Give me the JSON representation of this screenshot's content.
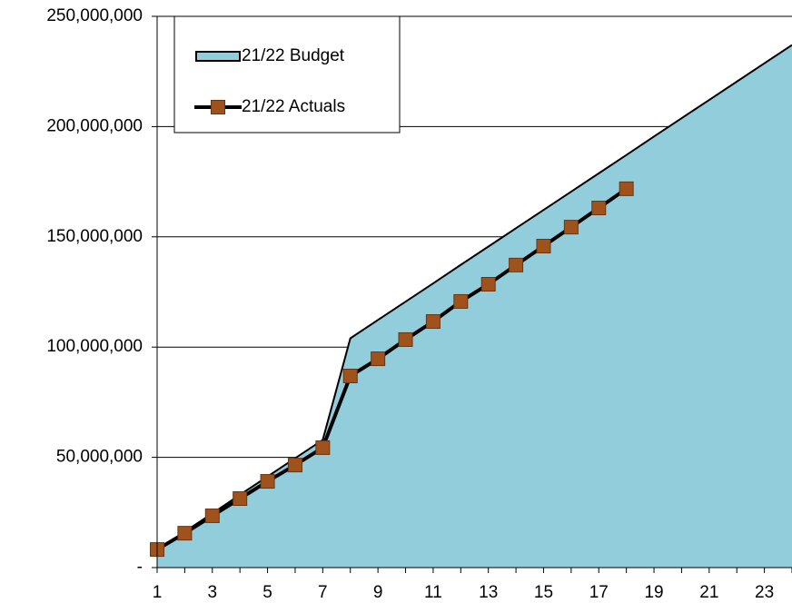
{
  "chart_data": {
    "type": "line",
    "categories": [
      "1",
      null,
      "3",
      null,
      "5",
      null,
      "7",
      null,
      "9",
      null,
      "11",
      null,
      "13",
      null,
      "15",
      null,
      "17",
      null,
      "19",
      null,
      "21",
      null,
      "23",
      null
    ],
    "series": [
      {
        "name": "21/22 Budget",
        "color": "#92cddc",
        "fill": true,
        "values": [
          8000000,
          16300000,
          24600000,
          33000000,
          41300000,
          49600000,
          57900000,
          104000000,
          112300000,
          120600000,
          128900000,
          137300000,
          145600000,
          153900000,
          162200000,
          170500000,
          178800000,
          187100000,
          195500000,
          203800000,
          212100000,
          220400000,
          228700000,
          237000000
        ]
      },
      {
        "name": "21/22 Actuals",
        "color": "#a0521c",
        "values": [
          8200000,
          15600000,
          23500000,
          31300000,
          39100000,
          46500000,
          54400000,
          86900000,
          94700000,
          103400000,
          111600000,
          120700000,
          128500000,
          137200000,
          145800000,
          154400000,
          163100000,
          171800000,
          null,
          null,
          null,
          null,
          null,
          null
        ]
      }
    ],
    "ylim": [
      0,
      250000000
    ],
    "yticks": [
      {
        "value": 0,
        "label": "-"
      },
      {
        "value": 50000000,
        "label": "50,000,000"
      },
      {
        "value": 100000000,
        "label": "100,000,000"
      },
      {
        "value": 150000000,
        "label": "150,000,000"
      },
      {
        "value": 200000000,
        "label": "200,000,000"
      },
      {
        "value": 250000000,
        "label": "250,000,000"
      }
    ],
    "grid": true,
    "legend": "top-left"
  }
}
